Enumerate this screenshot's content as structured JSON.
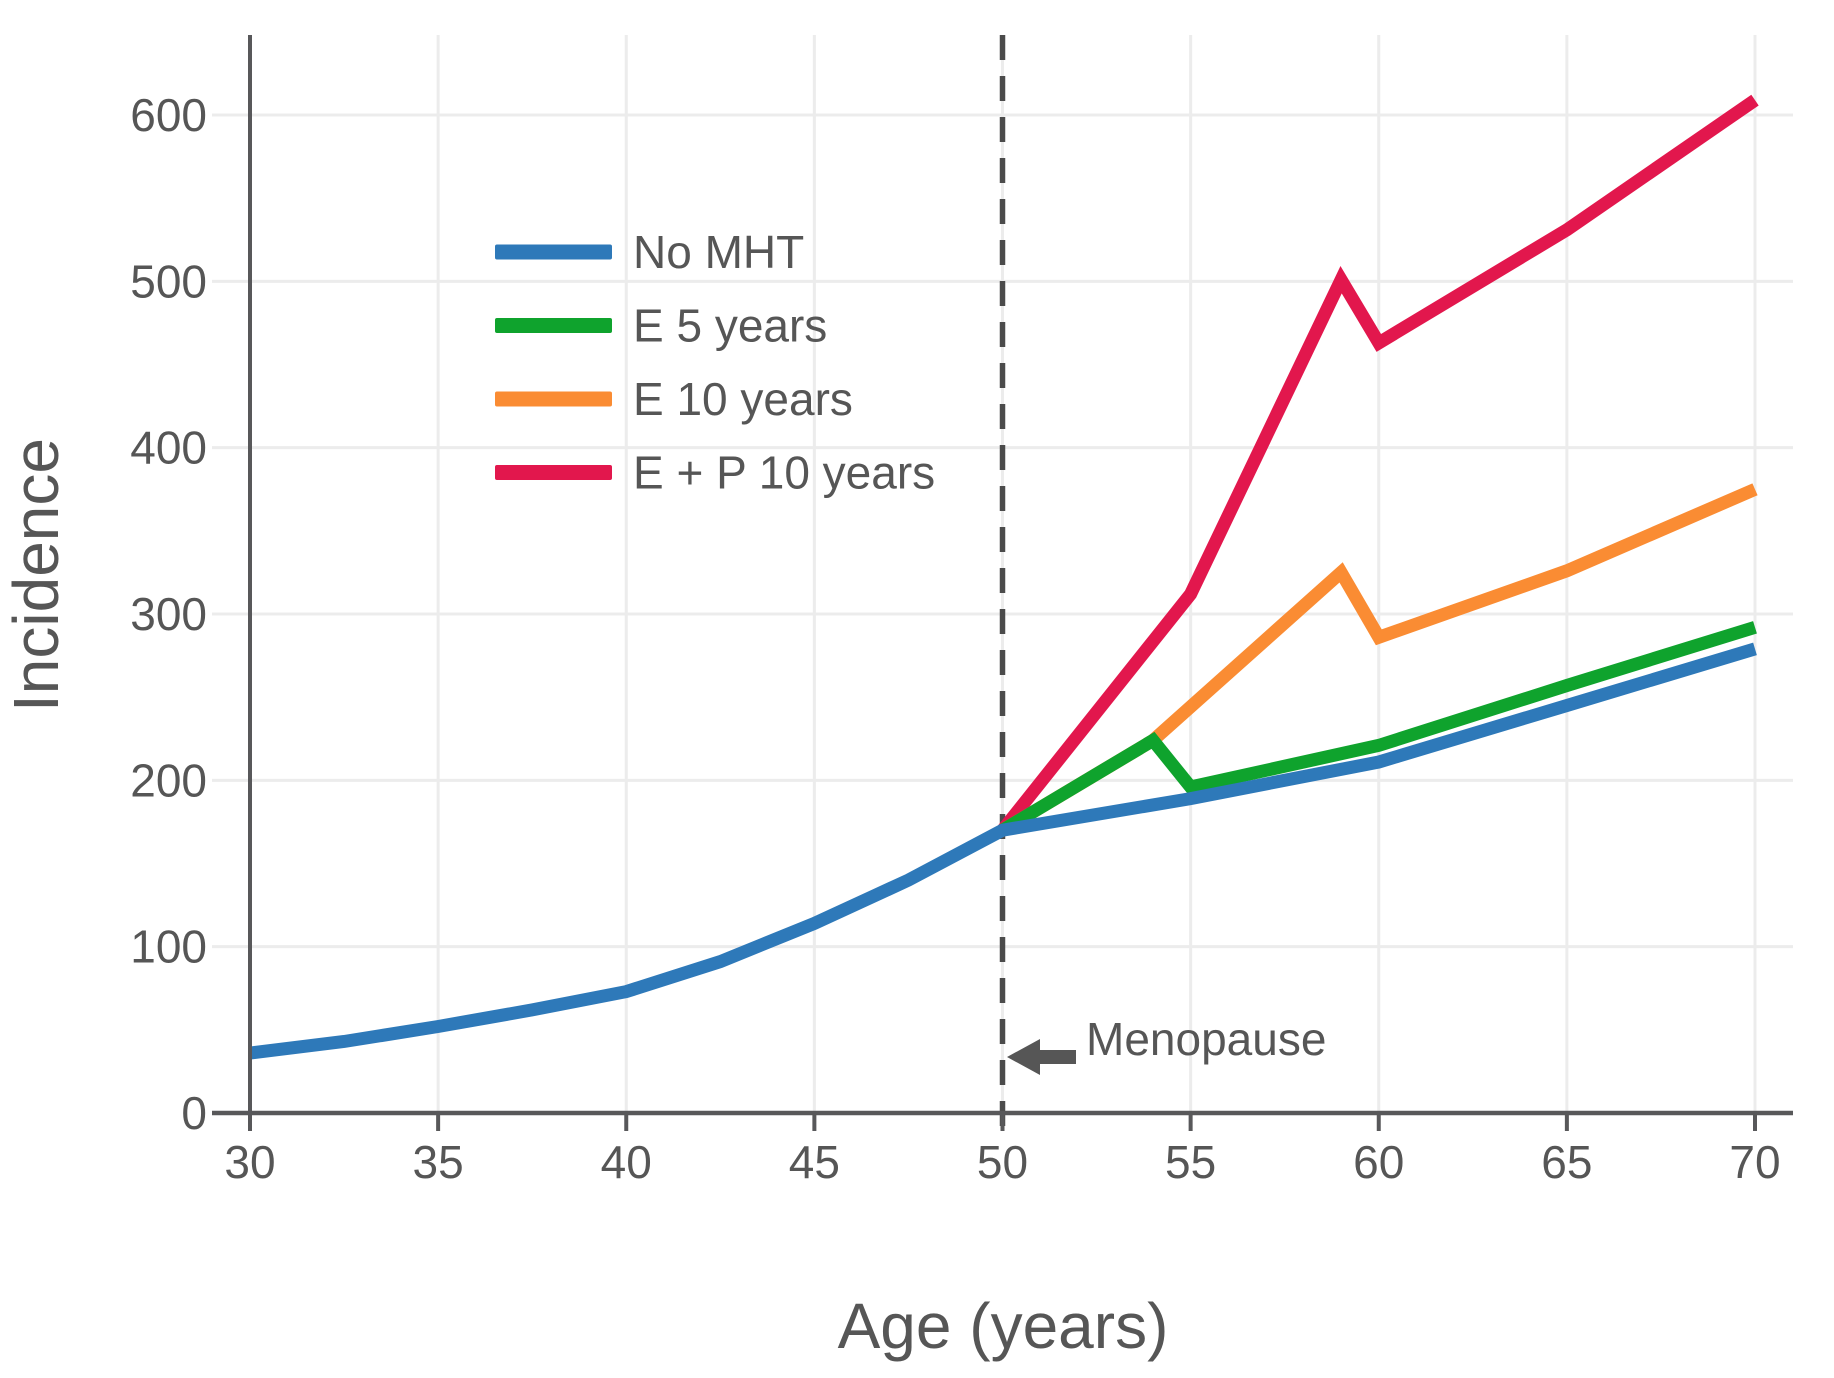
{
  "colors": {
    "background": "#ffffff",
    "grid": "#ececec",
    "spine": "#58585a",
    "tick_text": "#565656",
    "dashed_line": "#4b4b4b",
    "arrow": "#565656",
    "no_mht": "#2e79b9",
    "e5": "#0fa32d",
    "e10": "#fa8c33",
    "ep10": "#e2174d"
  },
  "chart_data": {
    "type": "line",
    "title": "",
    "xlabel": "Age (years)",
    "ylabel": "Incidence",
    "x_ticks": [
      30,
      35,
      40,
      45,
      50,
      55,
      60,
      65,
      70
    ],
    "y_ticks": [
      0,
      100,
      200,
      300,
      400,
      500,
      600
    ],
    "xlim": [
      30,
      71
    ],
    "ylim": [
      0,
      650
    ],
    "grid": true,
    "legend_position": "upper-left-inside",
    "vline": {
      "x": 50,
      "style": "dashed"
    },
    "annotation": {
      "label": "Menopause",
      "x": 50,
      "y": 33,
      "arrow": "left"
    },
    "series": [
      {
        "name": "No MHT",
        "color": "#2e79b9",
        "points": [
          [
            30,
            36
          ],
          [
            32.5,
            43
          ],
          [
            35,
            52
          ],
          [
            37.5,
            62
          ],
          [
            40,
            73
          ],
          [
            42.5,
            91
          ],
          [
            45,
            114
          ],
          [
            47.5,
            140
          ],
          [
            50,
            170
          ],
          [
            55,
            189
          ],
          [
            60,
            211
          ],
          [
            65,
            245
          ],
          [
            70,
            279
          ]
        ]
      },
      {
        "name": "E 5 years",
        "color": "#0fa32d",
        "points": [
          [
            50,
            170
          ],
          [
            54,
            224
          ],
          [
            55,
            196
          ],
          [
            60,
            221
          ],
          [
            65,
            257
          ],
          [
            70,
            292
          ]
        ]
      },
      {
        "name": "E 10 years",
        "color": "#fa8c33",
        "points": [
          [
            50,
            170
          ],
          [
            54,
            224
          ],
          [
            59,
            325
          ],
          [
            60,
            286
          ],
          [
            65,
            326
          ],
          [
            70,
            375
          ]
        ]
      },
      {
        "name": "E + P 10 years",
        "color": "#e2174d",
        "points": [
          [
            50,
            170
          ],
          [
            55,
            312
          ],
          [
            59,
            501
          ],
          [
            60,
            463
          ],
          [
            65,
            531
          ],
          [
            70,
            609
          ]
        ]
      }
    ]
  }
}
